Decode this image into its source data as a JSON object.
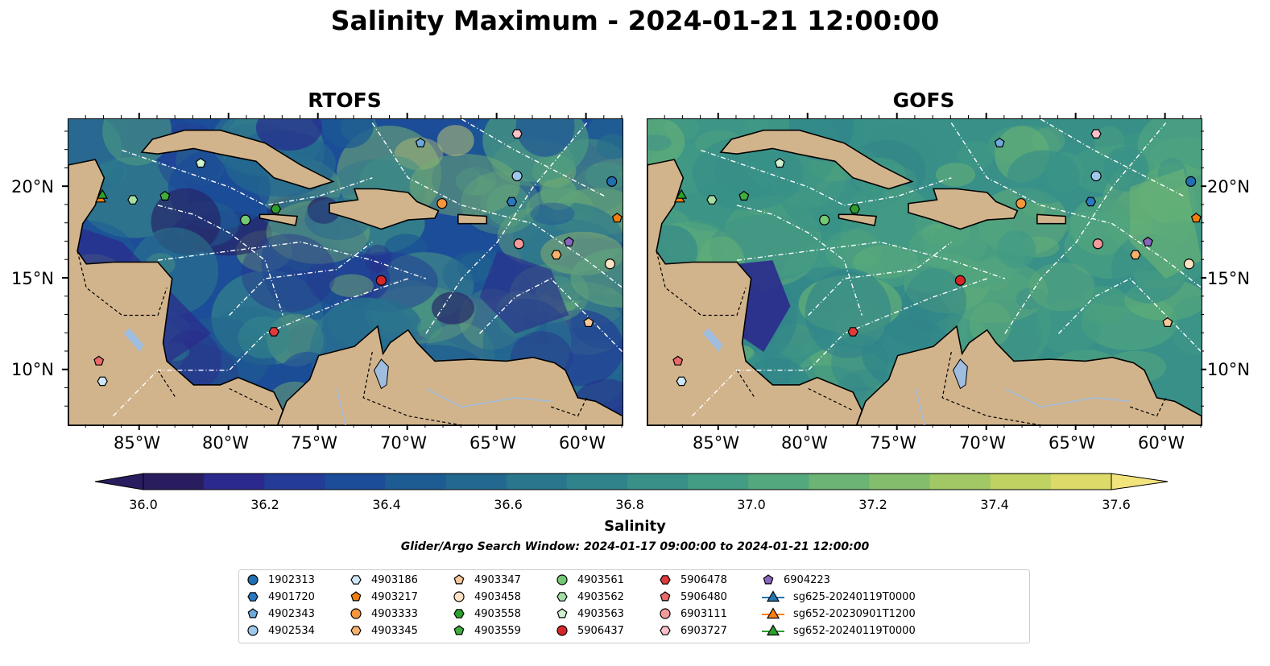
{
  "figure": {
    "title": "Salinity Maximum - 2024-01-21 12:00:00",
    "panels": [
      {
        "title": "RTOFS"
      },
      {
        "title": "GOFS"
      }
    ],
    "lon_ticks": [
      "85°W",
      "80°W",
      "75°W",
      "70°W",
      "65°W",
      "60°W"
    ],
    "lat_ticks": [
      "20°N",
      "15°N",
      "10°N"
    ],
    "colorbar": {
      "label": "Salinity",
      "ticks": [
        "36.0",
        "36.2",
        "36.4",
        "36.6",
        "36.8",
        "37.0",
        "37.2",
        "37.4",
        "37.6"
      ],
      "extend": "both"
    },
    "subtitle": "Glider/Argo Search Window: 2024-01-17 09:00:00 to 2024-01-21 12:00:00"
  },
  "colors": {
    "land": "#d2b48c",
    "lake": "#9fbddf",
    "boundary_line": "#ffffff",
    "colormap": [
      "#2a1d5f",
      "#2b2a8c",
      "#243b97",
      "#1c4d98",
      "#1d5c93",
      "#23698f",
      "#2a768d",
      "#30838b",
      "#389088",
      "#439c84",
      "#54a87d",
      "#6bb475",
      "#84be6c",
      "#a1c864",
      "#bfd262",
      "#dcdb69",
      "#f2e47d"
    ]
  },
  "legend": [
    {
      "label": "1902313",
      "marker": "circle",
      "color": "#1f6fb2"
    },
    {
      "label": "4901720",
      "marker": "hexagon",
      "color": "#2a78c0"
    },
    {
      "label": "4902343",
      "marker": "pentagon",
      "color": "#6fa8dc"
    },
    {
      "label": "4902534",
      "marker": "circle",
      "color": "#9ec9ec"
    },
    {
      "label": "4903186",
      "marker": "hexagon",
      "color": "#cfe6f7"
    },
    {
      "label": "4903217",
      "marker": "pentagon",
      "color": "#f07f0e"
    },
    {
      "label": "4903333",
      "marker": "circle",
      "color": "#f5963a"
    },
    {
      "label": "4903345",
      "marker": "hexagon",
      "color": "#f8b16a"
    },
    {
      "label": "4903347",
      "marker": "pentagon",
      "color": "#f8c79a"
    },
    {
      "label": "4903458",
      "marker": "circle",
      "color": "#fde2c4"
    },
    {
      "label": "4903558",
      "marker": "hexagon",
      "color": "#2ca02c"
    },
    {
      "label": "4903559",
      "marker": "pentagon",
      "color": "#3fae3f"
    },
    {
      "label": "4903561",
      "marker": "circle",
      "color": "#75c975"
    },
    {
      "label": "4903562",
      "marker": "hexagon",
      "color": "#a5dea5"
    },
    {
      "label": "4903563",
      "marker": "pentagon",
      "color": "#d0f2d0"
    },
    {
      "label": "5906437",
      "marker": "circle",
      "color": "#d62728"
    },
    {
      "label": "5906478",
      "marker": "hexagon",
      "color": "#e03a3b"
    },
    {
      "label": "5906480",
      "marker": "pentagon",
      "color": "#ea6a6a"
    },
    {
      "label": "6903111",
      "marker": "circle",
      "color": "#f59a9a"
    },
    {
      "label": "6903727",
      "marker": "hexagon",
      "color": "#fbc0c8"
    },
    {
      "label": "6904223",
      "marker": "pentagon",
      "color": "#8a65c0"
    },
    {
      "label": "sg625-20240119T0000",
      "marker": "triangle-line",
      "color": "#1f77b4"
    },
    {
      "label": "sg652-20230901T1200",
      "marker": "triangle-line",
      "color": "#ff7f0e"
    },
    {
      "label": "sg652-20240119T0000",
      "marker": "triangle-line",
      "color": "#2ca02c"
    }
  ],
  "observations": [
    {
      "id": "1902313",
      "lon": -58.6,
      "lat": 20.3
    },
    {
      "id": "4901720",
      "lon": -64.2,
      "lat": 19.2
    },
    {
      "id": "4902343",
      "lon": -69.3,
      "lat": 22.4
    },
    {
      "id": "4902534",
      "lon": -63.9,
      "lat": 20.6
    },
    {
      "id": "4903186",
      "lon": -87.1,
      "lat": 9.4
    },
    {
      "id": "4903217",
      "lon": -58.3,
      "lat": 18.3
    },
    {
      "id": "4903333",
      "lon": -68.1,
      "lat": 19.1
    },
    {
      "id": "4903345",
      "lon": -61.7,
      "lat": 16.3
    },
    {
      "id": "4903347",
      "lon": -59.9,
      "lat": 12.6
    },
    {
      "id": "4903458",
      "lon": -58.7,
      "lat": 15.8
    },
    {
      "id": "4903558",
      "lon": -77.4,
      "lat": 18.8
    },
    {
      "id": "4903559",
      "lon": -83.6,
      "lat": 19.5
    },
    {
      "id": "4903561",
      "lon": -79.1,
      "lat": 18.2
    },
    {
      "id": "4903562",
      "lon": -85.4,
      "lat": 19.3
    },
    {
      "id": "4903563",
      "lon": -81.6,
      "lat": 21.3
    },
    {
      "id": "5906437",
      "lon": -71.5,
      "lat": 14.9
    },
    {
      "id": "5906478",
      "lon": -77.5,
      "lat": 12.1
    },
    {
      "id": "5906480",
      "lon": -87.3,
      "lat": 10.5
    },
    {
      "id": "6903111",
      "lon": -63.8,
      "lat": 16.9
    },
    {
      "id": "6903727",
      "lon": -63.9,
      "lat": 22.9
    },
    {
      "id": "6904223",
      "lon": -61.0,
      "lat": 17.0
    },
    {
      "id": "sg652-20230901T1200",
      "lon": -87.2,
      "lat": 19.4
    },
    {
      "id": "sg652-20240119T0000",
      "lon": -87.1,
      "lat": 19.6
    }
  ]
}
